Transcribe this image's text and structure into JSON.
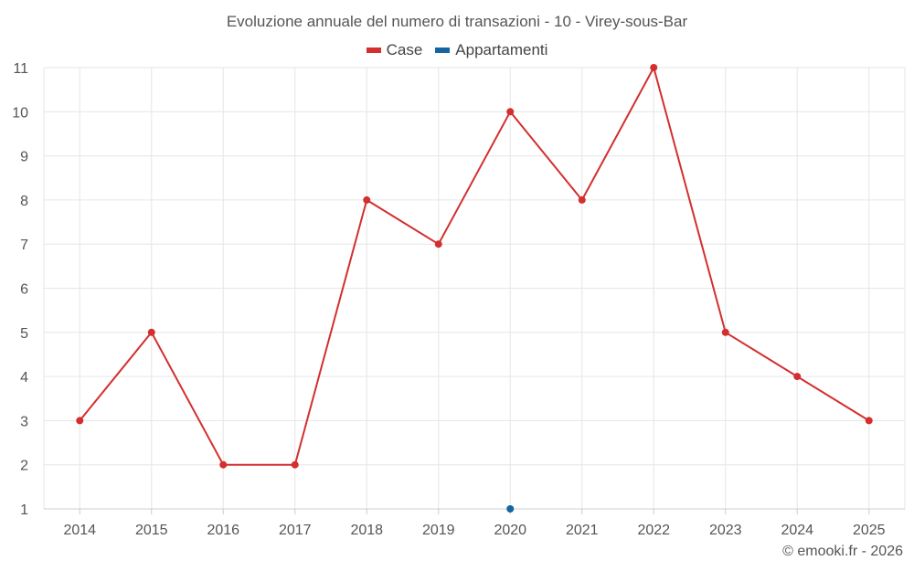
{
  "title": "Evoluzione annuale del numero di transazioni - 10 - Virey-sous-Bar",
  "legend": [
    {
      "label": "Case",
      "color": "#d32f2f"
    },
    {
      "label": "Appartamenti",
      "color": "#1565a0"
    }
  ],
  "credit": "© emooki.fr - 2026",
  "chart_data": {
    "type": "line",
    "title": "Evoluzione annuale del numero di transazioni - 10 - Virey-sous-Bar",
    "x": [
      "2014",
      "2015",
      "2016",
      "2017",
      "2018",
      "2019",
      "2020",
      "2021",
      "2022",
      "2023",
      "2024",
      "2025"
    ],
    "ylim": [
      1,
      11
    ],
    "yticks": [
      1,
      2,
      3,
      4,
      5,
      6,
      7,
      8,
      9,
      10,
      11
    ],
    "grid": true,
    "legend_position": "top-center",
    "series": [
      {
        "name": "Case",
        "color": "#d32f2f",
        "values": [
          3,
          5,
          2,
          2,
          8,
          7,
          10,
          8,
          11,
          5,
          4,
          3
        ]
      },
      {
        "name": "Appartamenti",
        "color": "#1565a0",
        "values": [
          null,
          null,
          null,
          null,
          null,
          null,
          1,
          null,
          null,
          null,
          null,
          null
        ]
      }
    ]
  }
}
